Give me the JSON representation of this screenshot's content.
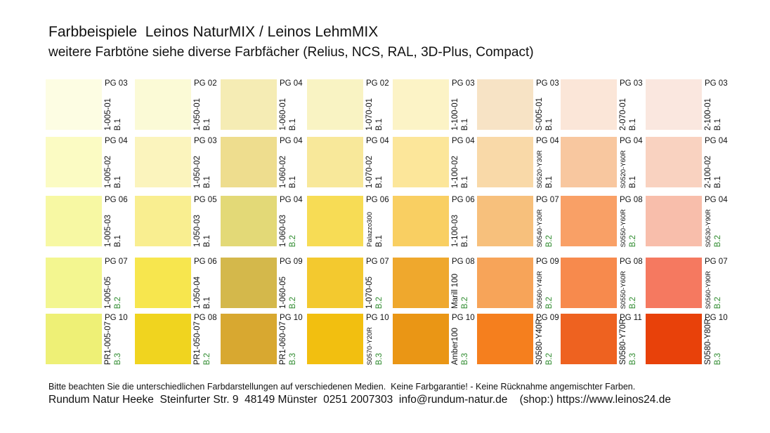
{
  "header": {
    "title": "Farbbeispiele  Leinos NaturMIX / Leinos LehmMIX",
    "subtitle": "weitere Farbtöne siehe diverse Farbfächer (Relius, NCS, RAL, 3D-Plus, Compact)"
  },
  "colors": {
    "b1_text": "#111111",
    "b2_text": "#2e8b2e",
    "b3_text": "#2e8b2e"
  },
  "columns": [
    {
      "cells": [
        {
          "swatch": "#fdfde3",
          "pg": "PG 03",
          "code": "1-005-01",
          "b": "B.1"
        },
        {
          "swatch": "#fbfbc3",
          "pg": "PG 04",
          "code": "1-005-02",
          "b": "B.1"
        },
        {
          "swatch": "#f7f8a3",
          "pg": "PG 06",
          "code": "1-005-03",
          "b": "B.1"
        },
        {
          "swatch": "#f3f690",
          "pg": "PG 07",
          "code": "1-005-05",
          "b": "B.2"
        },
        {
          "swatch": "#eef076",
          "pg": "PG 10",
          "code": "PR1-005-07",
          "b": "B.3"
        }
      ]
    },
    {
      "cells": [
        {
          "swatch": "#fbfad6",
          "pg": "PG 02",
          "code": "1-050-01",
          "b": "B.1"
        },
        {
          "swatch": "#fbf4bd",
          "pg": "PG 03",
          "code": "1-050-02",
          "b": "B.1"
        },
        {
          "swatch": "#f9ee90",
          "pg": "PG 05",
          "code": "1-050-03",
          "b": "B.1"
        },
        {
          "swatch": "#f7e64e",
          "pg": "PG 06",
          "code": "1-050-04",
          "b": "B.1"
        },
        {
          "swatch": "#f0d41f",
          "pg": "PG 08",
          "code": "PR1-050-07",
          "b": "B.2"
        }
      ]
    },
    {
      "cells": [
        {
          "swatch": "#f5ecb4",
          "pg": "PG 04",
          "code": "1-060-01",
          "b": "B.1"
        },
        {
          "swatch": "#eedd8e",
          "pg": "PG 04",
          "code": "1-060-02",
          "b": "B.1"
        },
        {
          "swatch": "#e3d977",
          "pg": "PG 04",
          "code": "1-060-03",
          "b": "B.2"
        },
        {
          "swatch": "#d4b84b",
          "pg": "PG 09",
          "code": "1-060-05",
          "b": "B.2"
        },
        {
          "swatch": "#d8a830",
          "pg": "PG 10",
          "code": "PR1-060-07",
          "b": "B.3"
        }
      ]
    },
    {
      "cells": [
        {
          "swatch": "#f9f3c3",
          "pg": "PG 02",
          "code": "1-070-01",
          "b": "B.1"
        },
        {
          "swatch": "#f8e89a",
          "pg": "PG 04",
          "code": "1-070-02",
          "b": "B.1"
        },
        {
          "swatch": "#f7dc55",
          "pg": "PG 06",
          "code": "Palazzo300",
          "b": "B.1",
          "small": true
        },
        {
          "swatch": "#f3c92f",
          "pg": "PG 07",
          "code": "1-070-05",
          "b": "B.2"
        },
        {
          "swatch": "#f2bf10",
          "pg": "PG 10",
          "code": "S0570-Y20R",
          "b": "B.3",
          "small": true
        }
      ]
    },
    {
      "cells": [
        {
          "swatch": "#fcf3c6",
          "pg": "PG 03",
          "code": "1-100-01",
          "b": "B.1"
        },
        {
          "swatch": "#fce69a",
          "pg": "PG 04",
          "code": "1-100-02",
          "b": "B.1"
        },
        {
          "swatch": "#f9cf62",
          "pg": "PG 06",
          "code": "1-100-03",
          "b": "B.1"
        },
        {
          "swatch": "#efa82d",
          "pg": "PG 08",
          "code": "Marill 100",
          "b": "B.2"
        },
        {
          "swatch": "#ea9615",
          "pg": "PG 10",
          "code": "Amber100",
          "b": "B.3"
        }
      ]
    },
    {
      "cells": [
        {
          "swatch": "#f7e3c5",
          "pg": "PG 03",
          "code": "S-005-01",
          "b": "B.1"
        },
        {
          "swatch": "#f9d9a8",
          "pg": "PG 04",
          "code": "S0520-Y30R",
          "b": "B.1",
          "small": true
        },
        {
          "swatch": "#f7c07c",
          "pg": "PG 07",
          "code": "S0540-Y30R",
          "b": "B.2",
          "small": true
        },
        {
          "swatch": "#f7a459",
          "pg": "PG 09",
          "code": "S0560-Y40R",
          "b": "B.2",
          "small": true
        },
        {
          "swatch": "#f57f1e",
          "pg": "PG 09",
          "code": "S0580-Y40R",
          "b": "B.2"
        }
      ]
    },
    {
      "cells": [
        {
          "swatch": "#fbe6d8",
          "pg": "PG 03",
          "code": "2-070-01",
          "b": "B.1"
        },
        {
          "swatch": "#f8c79f",
          "pg": "PG 04",
          "code": "S0520-Y60R",
          "b": "B.1",
          "small": true
        },
        {
          "swatch": "#f9a066",
          "pg": "PG 08",
          "code": "S0550-Y60R",
          "b": "B.2",
          "small": true
        },
        {
          "swatch": "#f78a4d",
          "pg": "PG 08",
          "code": "S0550-Y60R",
          "b": "B.2",
          "small": true
        },
        {
          "swatch": "#ee6220",
          "pg": "PG 11",
          "code": "S0580-Y70R",
          "b": "B.3"
        }
      ]
    },
    {
      "cells": [
        {
          "swatch": "#fae7df",
          "pg": "PG 03",
          "code": "2-100-01",
          "b": "B.1"
        },
        {
          "swatch": "#f9d2c0",
          "pg": "PG 04",
          "code": "2-100-02",
          "b": "B.1"
        },
        {
          "swatch": "#f8beab",
          "pg": "PG 04",
          "code": "S0530-Y90R",
          "b": "B.2",
          "small": true
        },
        {
          "swatch": "#f57960",
          "pg": "PG 07",
          "code": "S0560-Y90R",
          "b": "B.2",
          "small": true
        },
        {
          "swatch": "#e8410a",
          "pg": "PG 10",
          "code": "S0580-Y80R",
          "b": "B.3"
        }
      ]
    }
  ],
  "footer": {
    "note": "Bitte beachten Sie die unterschiedlichen Farbdarstellungen auf verschiedenen Medien.  Keine Farbgarantie! - Keine Rücknahme angemischter Farben.",
    "contact": "Rundum Natur Heeke  Steinfurter Str. 9  48149 Münster  0251 2007303  info@rundum-natur.de    (shop:) https://www.leinos24.de"
  }
}
